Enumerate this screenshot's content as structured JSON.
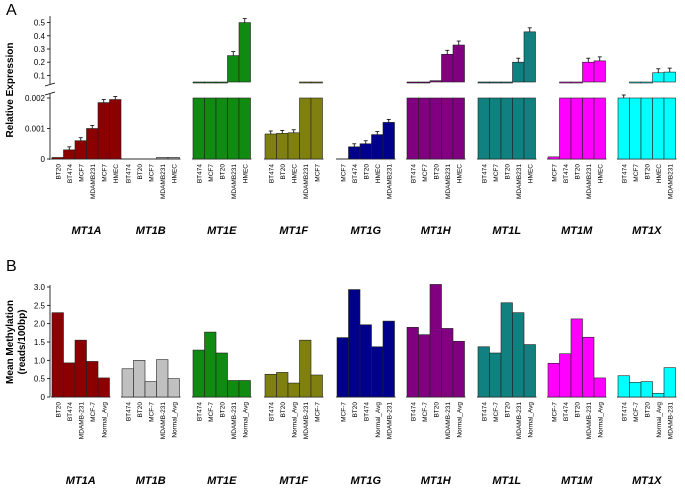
{
  "chart_data": [
    {
      "type": "bar",
      "panel": "A",
      "ylabel": "Relative Expression",
      "axis_break": true,
      "ylim_lower": [
        0,
        0.002
      ],
      "yticks_lower": [
        "0",
        "0.001",
        "0.002"
      ],
      "ylim_upper": [
        0.05,
        0.55
      ],
      "yticks_upper": [
        "0.1",
        "0.2",
        "0.3",
        "0.4",
        "0.5"
      ],
      "genes": [
        {
          "name": "MT1A",
          "color": "#8b0000",
          "categories": [
            "BT20",
            "BT474",
            "MCF7",
            "MDAMB231",
            "MCF7",
            "HMEC"
          ],
          "values": [
            5e-05,
            0.0003,
            0.0006,
            0.001,
            0.00185,
            0.00195
          ]
        },
        {
          "name": "MT1B",
          "color": "#9a9a9a",
          "categories": [
            "BT474",
            "BT20",
            "MCF7",
            "MDAMB231",
            "HMEC"
          ],
          "values": [
            0,
            0,
            0,
            5e-05,
            5e-05
          ]
        },
        {
          "name": "MT1E",
          "color": "#108a10",
          "categories": [
            "BT474",
            "MCF7",
            "BT20",
            "MDAMB231",
            "HMEC"
          ],
          "values": [
            0.004,
            0.008,
            0.03,
            0.25,
            0.5
          ]
        },
        {
          "name": "MT1F",
          "color": "#808010",
          "categories": [
            "BT474",
            "BT20",
            "HMEC",
            "MDAMB231",
            "MCF7"
          ],
          "values": [
            0.00082,
            0.00084,
            0.00086,
            0.0048,
            0.008
          ]
        },
        {
          "name": "MT1G",
          "color": "#00008b",
          "categories": [
            "MCF7",
            "BT474",
            "BT20",
            "HMEC",
            "MDAMB231"
          ],
          "values": [
            0,
            0.0004,
            0.0005,
            0.0008,
            0.0012
          ]
        },
        {
          "name": "MT1H",
          "color": "#800080",
          "categories": [
            "BT474",
            "MCF7",
            "BT20",
            "MDAMB231",
            "HMEC"
          ],
          "values": [
            0.01,
            0.05,
            0.06,
            0.26,
            0.33
          ]
        },
        {
          "name": "MT1L",
          "color": "#108080",
          "categories": [
            "BT474",
            "MCF7",
            "BT20",
            "MDAMB231",
            "HMEC"
          ],
          "values": [
            0.003,
            0.006,
            0.02,
            0.2,
            0.43
          ]
        },
        {
          "name": "MT1M",
          "color": "#ff00ff",
          "categories": [
            "MCF7",
            "BT474",
            "BT20",
            "MDAMB231",
            "HMEC"
          ],
          "values": [
            7e-05,
            0.003,
            0.015,
            0.2,
            0.21
          ]
        },
        {
          "name": "MT1X",
          "color": "#00ffff",
          "categories": [
            "BT474",
            "MCF7",
            "BT20",
            "HMEC",
            "MDAMB231"
          ],
          "values": [
            0.002,
            0.003,
            0.01,
            0.12,
            0.125
          ]
        }
      ]
    },
    {
      "type": "bar",
      "panel": "B",
      "ylabel": "Mean Methylation (reads/100bp)",
      "ylim": [
        0,
        3.0
      ],
      "yticks": [
        "0",
        "0.5",
        "1.0",
        "1.5",
        "2.0",
        "2.5",
        "3.0"
      ],
      "genes": [
        {
          "name": "MT1A",
          "color": "#8b0000",
          "categories": [
            "BT20",
            "BT474",
            "MDAMB-231",
            "MCF-7",
            "Normal_Avg"
          ],
          "values": [
            2.3,
            0.93,
            1.55,
            0.97,
            0.52
          ]
        },
        {
          "name": "MT1B",
          "color": "#c0c0c0",
          "categories": [
            "BT474",
            "BT20",
            "MCF-7",
            "MDAMB-231",
            "Normal_Avg"
          ],
          "values": [
            0.77,
            1.0,
            0.42,
            1.02,
            0.5
          ]
        },
        {
          "name": "MT1E",
          "color": "#108a10",
          "categories": [
            "BT474",
            "MCF-7",
            "BT20",
            "MDAMB-231",
            "Normal_Avg"
          ],
          "values": [
            1.28,
            1.77,
            1.2,
            0.45,
            0.45
          ]
        },
        {
          "name": "MT1F",
          "color": "#808010",
          "categories": [
            "BT474",
            "BT20",
            "Normal_Avg",
            "MDAMB-231",
            "MCF-7"
          ],
          "values": [
            0.62,
            0.67,
            0.38,
            1.55,
            0.6
          ]
        },
        {
          "name": "MT1G",
          "color": "#00008b",
          "categories": [
            "MCF-7",
            "BT20",
            "BT474",
            "Normal_Avg",
            "MDAMB-231"
          ],
          "values": [
            1.62,
            2.93,
            1.97,
            1.37,
            2.07
          ]
        },
        {
          "name": "MT1H",
          "color": "#800080",
          "categories": [
            "BT474",
            "MCF-7",
            "BT20",
            "MDAMB-231",
            "Normal_Avg"
          ],
          "values": [
            1.9,
            1.7,
            3.07,
            1.87,
            1.52
          ]
        },
        {
          "name": "MT1L",
          "color": "#108080",
          "categories": [
            "BT474",
            "MCF-7",
            "BT20",
            "MDAMB-231",
            "Normal_Avg"
          ],
          "values": [
            1.37,
            1.2,
            2.57,
            2.3,
            1.43
          ]
        },
        {
          "name": "MT1M",
          "color": "#ff00ff",
          "categories": [
            "MCF-7",
            "BT474",
            "BT20",
            "MDAMB-231",
            "Normal_Avg"
          ],
          "values": [
            0.92,
            1.18,
            2.13,
            1.63,
            0.52
          ]
        },
        {
          "name": "MT1X",
          "color": "#00ffff",
          "categories": [
            "BT474",
            "MCF-7",
            "BT20",
            "Normal_Avg",
            "MDAMB-231"
          ],
          "values": [
            0.58,
            0.4,
            0.42,
            0.1,
            0.8
          ]
        }
      ]
    }
  ]
}
